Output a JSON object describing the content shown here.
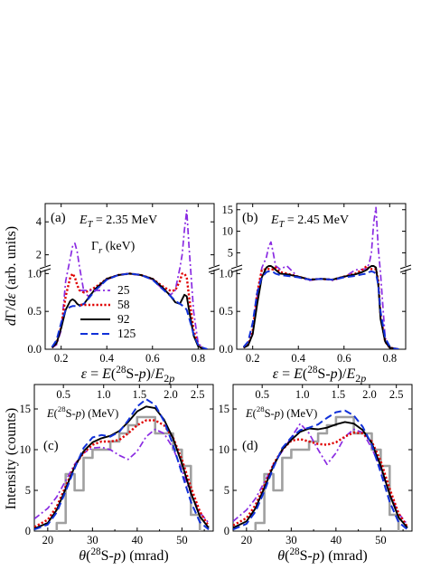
{
  "colors": {
    "g25": "#8a2be2",
    "g58": "#e00000",
    "g92": "#000000",
    "g125": "#1030d8",
    "histogram": "#a0a0a0"
  },
  "y_label_top": "dΓ/dε (arb. units)",
  "y_label_bottom": "Intensity (counts)",
  "legend": {
    "title": "Γr (keV)",
    "items": [
      "25",
      "58",
      "92",
      "125"
    ]
  },
  "chart_data": [
    {
      "type": "line",
      "panel_label": "(a)",
      "annotation": "ET = 2.35 MeV",
      "xlabel": "ε = E(28S-p)/E2p",
      "ylabel": "dΓ/dε (arb. units)",
      "xlim": [
        0.13,
        0.87
      ],
      "xticks": [
        "0.2",
        "0.4",
        "0.6",
        "0.8"
      ],
      "ylim_lower": [
        0,
        1.1
      ],
      "ylim_upper": [
        1.1,
        5
      ],
      "yticks_lower": [
        "0.0",
        "0.5",
        "1.0"
      ],
      "yticks_upper": [
        "2",
        "4"
      ],
      "x": [
        0.16,
        0.18,
        0.2,
        0.22,
        0.24,
        0.25,
        0.26,
        0.27,
        0.28,
        0.3,
        0.32,
        0.35,
        0.4,
        0.45,
        0.5,
        0.55,
        0.6,
        0.65,
        0.68,
        0.7,
        0.72,
        0.73,
        0.74,
        0.75,
        0.76,
        0.78,
        0.8,
        0.82,
        0.84
      ],
      "series": [
        {
          "name": "25",
          "values": [
            0.02,
            0.06,
            0.25,
            0.9,
            1.8,
            2.5,
            2.7,
            2.2,
            1.3,
            0.75,
            0.7,
            0.78,
            0.92,
            0.98,
            1.0,
            0.98,
            0.92,
            0.78,
            0.72,
            0.78,
            1.2,
            2.0,
            3.5,
            4.7,
            2.5,
            0.5,
            0.08,
            0.02,
            0.0
          ]
        },
        {
          "name": "58",
          "values": [
            0.02,
            0.08,
            0.3,
            0.7,
            0.95,
            1.0,
            0.95,
            0.85,
            0.78,
            0.75,
            0.77,
            0.82,
            0.93,
            0.98,
            1.0,
            0.98,
            0.93,
            0.82,
            0.77,
            0.78,
            0.9,
            1.0,
            1.0,
            0.95,
            0.7,
            0.25,
            0.06,
            0.01,
            0.0
          ]
        },
        {
          "name": "92",
          "values": [
            0.02,
            0.08,
            0.28,
            0.52,
            0.64,
            0.66,
            0.64,
            0.6,
            0.58,
            0.6,
            0.68,
            0.8,
            0.93,
            0.98,
            1.0,
            0.98,
            0.93,
            0.8,
            0.7,
            0.62,
            0.6,
            0.66,
            0.72,
            0.7,
            0.52,
            0.18,
            0.04,
            0.01,
            0.0
          ]
        },
        {
          "name": "125",
          "values": [
            0.03,
            0.12,
            0.35,
            0.52,
            0.56,
            0.57,
            0.57,
            0.57,
            0.57,
            0.6,
            0.67,
            0.78,
            0.92,
            0.98,
            1.0,
            0.98,
            0.92,
            0.78,
            0.7,
            0.64,
            0.6,
            0.58,
            0.56,
            0.52,
            0.42,
            0.2,
            0.06,
            0.02,
            0.0
          ]
        }
      ]
    },
    {
      "type": "line",
      "panel_label": "(b)",
      "annotation": "ET = 2.45 MeV",
      "xlabel": "ε = E(28S-p)/E2p",
      "xlim": [
        0.13,
        0.87
      ],
      "xticks": [
        "0.2",
        "0.4",
        "0.6",
        "0.8"
      ],
      "ylim_lower": [
        0,
        1.1
      ],
      "ylim_upper": [
        1.1,
        16
      ],
      "yticks_lower": [
        "0.0",
        "0.5",
        "1.0"
      ],
      "yticks_upper": [
        "5",
        "10",
        "15"
      ],
      "x": [
        0.16,
        0.18,
        0.2,
        0.22,
        0.24,
        0.26,
        0.27,
        0.28,
        0.29,
        0.3,
        0.32,
        0.35,
        0.4,
        0.45,
        0.5,
        0.55,
        0.6,
        0.65,
        0.68,
        0.7,
        0.71,
        0.72,
        0.73,
        0.74,
        0.75,
        0.76,
        0.78,
        0.8,
        0.82,
        0.84
      ],
      "series": [
        {
          "name": "25",
          "values": [
            0.02,
            0.05,
            0.2,
            0.7,
            1.5,
            4.0,
            6.5,
            7.5,
            5.0,
            2.0,
            1.2,
            1.1,
            0.95,
            0.91,
            0.93,
            0.91,
            0.95,
            1.05,
            1.15,
            1.4,
            2.5,
            5.0,
            12.0,
            15.5,
            6.0,
            1.0,
            0.15,
            0.03,
            0.01,
            0.0
          ]
        },
        {
          "name": "58",
          "values": [
            0.02,
            0.06,
            0.25,
            0.75,
            1.05,
            1.2,
            1.25,
            1.22,
            1.15,
            1.08,
            1.02,
            1.0,
            0.96,
            0.92,
            0.93,
            0.92,
            0.96,
            1.0,
            1.05,
            1.1,
            1.18,
            1.22,
            1.24,
            1.2,
            0.9,
            0.45,
            0.1,
            0.02,
            0.01,
            0.0
          ]
        },
        {
          "name": "92",
          "values": [
            0.02,
            0.05,
            0.2,
            0.6,
            0.95,
            1.08,
            1.1,
            1.1,
            1.08,
            1.05,
            1.0,
            0.99,
            0.96,
            0.92,
            0.93,
            0.92,
            0.96,
            0.99,
            1.02,
            1.05,
            1.08,
            1.1,
            1.1,
            1.08,
            0.85,
            0.4,
            0.1,
            0.02,
            0.01,
            0.0
          ]
        },
        {
          "name": "125",
          "values": [
            0.03,
            0.1,
            0.35,
            0.75,
            0.95,
            1.02,
            1.03,
            1.03,
            1.02,
            1.0,
            0.98,
            0.97,
            0.95,
            0.92,
            0.93,
            0.92,
            0.95,
            0.97,
            0.99,
            1.0,
            1.02,
            1.03,
            1.02,
            1.0,
            0.85,
            0.5,
            0.15,
            0.04,
            0.01,
            0.0
          ]
        }
      ]
    },
    {
      "type": "line",
      "panel_label": "(c)",
      "top_axis_label": "E(28S-p) (MeV)",
      "top_ticks": [
        "0.5",
        "1.0",
        "1.5",
        "2.0",
        "2.5"
      ],
      "xlabel": "θ(28S-p) (mrad)",
      "ylabel": "Intensity (counts)",
      "xlim": [
        17,
        57
      ],
      "ylim": [
        0,
        18
      ],
      "xticks": [
        "20",
        "30",
        "40",
        "50"
      ],
      "yticks": [
        "0",
        "5",
        "10",
        "15"
      ],
      "histogram": {
        "edges": [
          22,
          24,
          26,
          28,
          30,
          32,
          34,
          36,
          38,
          40,
          42,
          44,
          46,
          48,
          50,
          52,
          54
        ],
        "counts": [
          1,
          7,
          5,
          9,
          10,
          10,
          11,
          12,
          13,
          14,
          14,
          12,
          12,
          10,
          8,
          2
        ]
      },
      "x": [
        17,
        20,
        22,
        24,
        26,
        28,
        30,
        32,
        34,
        36,
        38,
        40,
        42,
        44,
        46,
        48,
        50,
        52,
        54,
        56
      ],
      "series": [
        {
          "name": "25",
          "values": [
            1.5,
            2.8,
            4.2,
            6.2,
            8.2,
            9.6,
            10.2,
            10.3,
            10.0,
            9.3,
            8.8,
            9.8,
            11.6,
            12.5,
            12.0,
            10.2,
            7.5,
            4.6,
            2.3,
            1.0
          ]
        },
        {
          "name": "58",
          "values": [
            0.5,
            1.4,
            3.0,
            5.5,
            8.0,
            9.6,
            10.6,
            11.0,
            11.0,
            11.2,
            12.0,
            13.0,
            13.6,
            13.6,
            13.0,
            11.5,
            8.8,
            5.4,
            2.4,
            0.6
          ]
        },
        {
          "name": "92",
          "values": [
            0.3,
            1.0,
            2.6,
            5.2,
            7.9,
            9.8,
            10.9,
            11.4,
            11.7,
            12.3,
            13.4,
            14.7,
            15.3,
            15.1,
            13.7,
            11.4,
            8.3,
            4.7,
            1.8,
            0.4
          ]
        },
        {
          "name": "125",
          "values": [
            0.2,
            0.8,
            2.3,
            4.9,
            7.7,
            10.2,
            11.5,
            11.8,
            11.6,
            12.2,
            13.6,
            15.3,
            16.2,
            15.5,
            13.5,
            10.6,
            7.1,
            3.6,
            1.1,
            0.2
          ]
        }
      ]
    },
    {
      "type": "line",
      "panel_label": "(d)",
      "top_axis_label": "E(28S-p) (MeV)",
      "top_ticks": [
        "0.5",
        "1.0",
        "1.5",
        "2.0",
        "2.5"
      ],
      "xlabel": "θ(28S-p) (mrad)",
      "xlim": [
        17,
        57
      ],
      "ylim": [
        0,
        18
      ],
      "xticks": [
        "20",
        "30",
        "40",
        "50"
      ],
      "yticks": [
        "0",
        "5",
        "10",
        "15"
      ],
      "histogram": {
        "edges": [
          22,
          24,
          26,
          28,
          30,
          32,
          34,
          36,
          38,
          40,
          42,
          44,
          46,
          48,
          50,
          52,
          54
        ],
        "counts": [
          1,
          7,
          5,
          9,
          10,
          10,
          11,
          12,
          13,
          14,
          14,
          12,
          12,
          10,
          8,
          2
        ]
      },
      "x": [
        17,
        20,
        22,
        24,
        26,
        28,
        30,
        32,
        34,
        36,
        38,
        40,
        42,
        44,
        46,
        48,
        50,
        52,
        54,
        56
      ],
      "series": [
        {
          "name": "25",
          "values": [
            1.2,
            2.6,
            4.0,
            6.0,
            8.2,
            9.8,
            11.5,
            13.2,
            12.0,
            10.0,
            8.2,
            9.6,
            11.6,
            12.5,
            12.1,
            10.2,
            7.6,
            4.6,
            2.2,
            0.8
          ]
        },
        {
          "name": "58",
          "values": [
            0.7,
            1.6,
            3.2,
            5.6,
            8.2,
            10.0,
            11.1,
            11.3,
            11.0,
            10.7,
            10.6,
            10.9,
            11.6,
            12.1,
            12.0,
            11.0,
            8.6,
            5.2,
            2.2,
            0.5
          ]
        },
        {
          "name": "92",
          "values": [
            0.4,
            1.2,
            2.8,
            5.3,
            8.0,
            10.0,
            11.2,
            12.2,
            12.6,
            12.5,
            12.7,
            13.1,
            13.4,
            13.2,
            12.4,
            10.8,
            8.0,
            4.5,
            1.7,
            0.4
          ]
        },
        {
          "name": "125",
          "values": [
            0.2,
            0.9,
            2.4,
            4.9,
            7.8,
            10.2,
            11.5,
            12.4,
            12.7,
            13.1,
            13.9,
            14.6,
            14.8,
            14.2,
            12.8,
            10.6,
            7.2,
            3.6,
            1.1,
            0.2
          ]
        }
      ]
    }
  ]
}
